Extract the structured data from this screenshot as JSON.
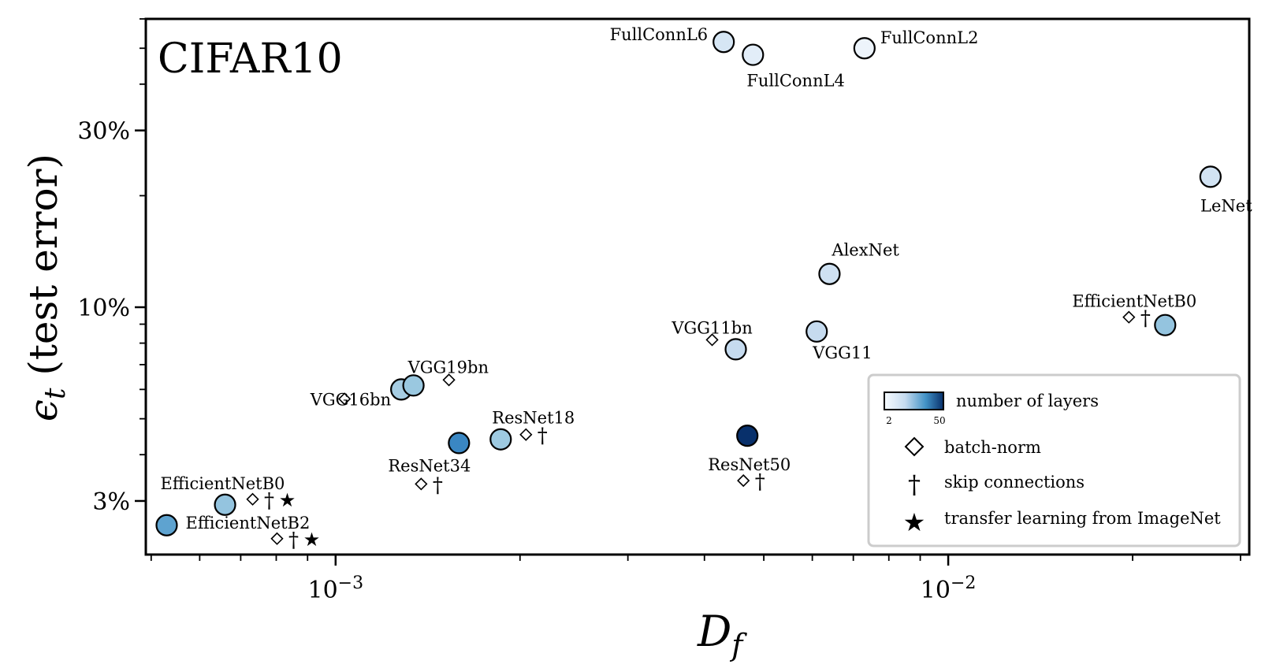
{
  "chart_data": {
    "type": "scatter",
    "title": "CIFAR10",
    "xlabel": "D_f",
    "ylabel": "ε_t (test error)",
    "x_scale": "log",
    "y_scale": "log",
    "xlim": [
      0.00049,
      0.031
    ],
    "ylim": [
      2.15,
      60
    ],
    "x_ticks": [
      {
        "value": 0.001,
        "label": "10^-3"
      },
      {
        "value": 0.01,
        "label": "10^-2"
      }
    ],
    "y_ticks": [
      {
        "value": 3,
        "label": "3%"
      },
      {
        "value": 10,
        "label": "10%"
      },
      {
        "value": 30,
        "label": "30%"
      }
    ],
    "grid": false,
    "colorbar": {
      "label": "number of layers",
      "min": 2,
      "max": 50,
      "colormap": "Blues",
      "tick_labels": [
        "2",
        "50"
      ]
    },
    "legend": {
      "placement": "lower-right",
      "entries": [
        {
          "marker": "colorbar",
          "label": "number of layers"
        },
        {
          "marker": "diamond",
          "label": "batch-norm"
        },
        {
          "marker": "dagger",
          "label": "skip connections"
        },
        {
          "marker": "star",
          "label": "transfer learning from ImageNet"
        }
      ]
    },
    "points": [
      {
        "name": "FullConnL6",
        "x": 0.0043,
        "y": 52,
        "layers": 6,
        "color": "#d6e6f4",
        "batchnorm": false,
        "skip": false,
        "transfer": false,
        "label_pos": "left"
      },
      {
        "name": "FullConnL4",
        "x": 0.0048,
        "y": 48,
        "layers": 4,
        "color": "#e2edf8",
        "batchnorm": false,
        "skip": false,
        "transfer": false,
        "label_pos": "below-right"
      },
      {
        "name": "FullConnL2",
        "x": 0.0073,
        "y": 50,
        "layers": 2,
        "color": "#edf4fb",
        "batchnorm": false,
        "skip": false,
        "transfer": false,
        "label_pos": "right"
      },
      {
        "name": "LeNet",
        "x": 0.0268,
        "y": 22.5,
        "layers": 5,
        "color": "#d2e3f3",
        "batchnorm": false,
        "skip": false,
        "transfer": false,
        "label_pos": "below"
      },
      {
        "name": "AlexNet",
        "x": 0.0064,
        "y": 12.3,
        "layers": 8,
        "color": "#cfe1f2",
        "batchnorm": false,
        "skip": false,
        "transfer": false,
        "label_pos": "above-right"
      },
      {
        "name": "VGG11",
        "x": 0.0061,
        "y": 8.6,
        "layers": 11,
        "color": "#c6dbef",
        "batchnorm": false,
        "skip": false,
        "transfer": false,
        "label_pos": "below-right"
      },
      {
        "name": "VGG11bn",
        "x": 0.0045,
        "y": 7.7,
        "layers": 11,
        "color": "#c6dbef",
        "batchnorm": true,
        "skip": false,
        "transfer": false,
        "label_pos": "above-left"
      },
      {
        "name": "EfficientNetB0",
        "x": 0.0226,
        "y": 8.95,
        "layers": 18,
        "color": "#94c4df",
        "batchnorm": true,
        "skip": true,
        "transfer": false,
        "label_pos": "above-left"
      },
      {
        "name": "VGG16bn",
        "x": 0.00128,
        "y": 6.0,
        "layers": 16,
        "color": "#a6cde3",
        "batchnorm": true,
        "skip": false,
        "transfer": false,
        "label_pos": "left"
      },
      {
        "name": "VGG19bn",
        "x": 0.00134,
        "y": 6.15,
        "layers": 19,
        "color": "#9ac8e0",
        "batchnorm": true,
        "skip": false,
        "transfer": false,
        "label_pos": "above-right"
      },
      {
        "name": "ResNet18",
        "x": 0.00186,
        "y": 4.4,
        "layers": 18,
        "color": "#9ecae1",
        "batchnorm": true,
        "skip": true,
        "transfer": false,
        "label_pos": "above-right"
      },
      {
        "name": "ResNet34",
        "x": 0.00159,
        "y": 4.3,
        "layers": 34,
        "color": "#3a87c3",
        "batchnorm": true,
        "skip": true,
        "transfer": false,
        "label_pos": "below-left"
      },
      {
        "name": "ResNet50",
        "x": 0.0047,
        "y": 4.5,
        "layers": 50,
        "color": "#08306b",
        "batchnorm": true,
        "skip": true,
        "transfer": false,
        "label_pos": "below"
      },
      {
        "name": "EfficientNetB0",
        "x": 0.00066,
        "y": 2.93,
        "layers": 18,
        "color": "#94c4df",
        "batchnorm": true,
        "skip": true,
        "transfer": true,
        "label_pos": "above-left"
      },
      {
        "name": "EfficientNetB2",
        "x": 0.00053,
        "y": 2.58,
        "layers": 24,
        "color": "#5ea3d0",
        "batchnorm": true,
        "skip": true,
        "transfer": true,
        "label_pos": "right"
      }
    ]
  }
}
